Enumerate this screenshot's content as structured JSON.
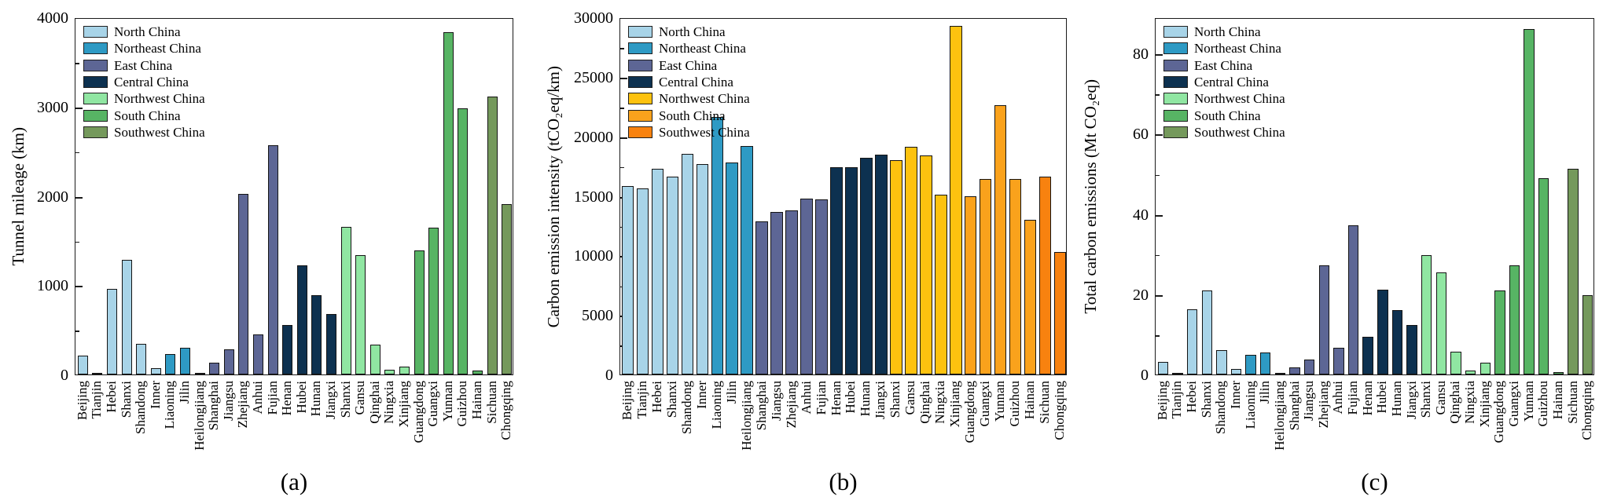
{
  "figure": {
    "background": "#ffffff",
    "frame_color": "#1a1a1a"
  },
  "regions": {
    "labels": [
      "North China",
      "Northeast China",
      "East China",
      "Central China",
      "Northwest China",
      "South China",
      "Southwest China"
    ],
    "sizes": [
      6,
      3,
      5,
      4,
      5,
      5,
      2
    ]
  },
  "chart_data": [
    {
      "type": "bar",
      "caption": "(a)",
      "ylabel": "Tunnel mileage (km)",
      "ylim": [
        0,
        4000
      ],
      "yticks": [
        0,
        1000,
        2000,
        3000,
        4000
      ],
      "ytick_minor_step": 500,
      "grid": false,
      "legend_position": "top-left",
      "legend_labels": [
        "North China",
        "Northeast China",
        "East China",
        "Central China",
        "Northwest China",
        "South China",
        "Southwest China"
      ],
      "region_colors": [
        "#A8D4E8",
        "#2E9AC4",
        "#5D6695",
        "#0D3150",
        "#90E6A2",
        "#57B464",
        "#75995C"
      ],
      "region_sizes": [
        6,
        3,
        5,
        4,
        5,
        5,
        2
      ],
      "categories": [
        "Beijing",
        "Tianjin",
        "Hebei",
        "Shanxi",
        "Shandong",
        "Inner",
        "Liaoning",
        "Jilin",
        "Heilongjiang",
        "Shanghai",
        "Jiangsu",
        "Zhejiang",
        "Anhui",
        "Fujian",
        "Henan",
        "Hubei",
        "Hunan",
        "Jiangxi",
        "Shanxi",
        "Gansu",
        "Qinghai",
        "Ningxia",
        "Xinjiang",
        "Guangdong",
        "Guangxi",
        "Yunnan",
        "Guizhou",
        "Hainan",
        "Sichuan",
        "Chongqing"
      ],
      "values": [
        210,
        20,
        960,
        1285,
        340,
        70,
        230,
        300,
        15,
        135,
        285,
        2020,
        450,
        2570,
        550,
        1225,
        890,
        680,
        1650,
        1335,
        330,
        55,
        90,
        1385,
        1645,
        3830,
        2980,
        45,
        3110,
        1905
      ]
    },
    {
      "type": "bar",
      "caption": "(b)",
      "ylabel": "Carbon emission intensity (tCO₂eq/km)",
      "ylim": [
        0,
        30000
      ],
      "yticks": [
        0,
        5000,
        10000,
        15000,
        20000,
        25000,
        30000
      ],
      "ytick_minor_step": 2500,
      "grid": false,
      "legend_position": "top-left",
      "legend_labels": [
        "North China",
        "Northeast China",
        "East China",
        "Central China",
        "Northwest China",
        "South China",
        "Southwest China"
      ],
      "region_colors": [
        "#A8D4E8",
        "#2E9AC4",
        "#5D6695",
        "#0D3150",
        "#FDC20F",
        "#FAA21C",
        "#F8820F"
      ],
      "region_sizes": [
        6,
        3,
        5,
        4,
        5,
        5,
        2
      ],
      "categories": [
        "Beijing",
        "Tianjin",
        "Hebei",
        "Shanxi",
        "Shandong",
        "Inner",
        "Liaoning",
        "Jilin",
        "Heilongjiang",
        "Shanghai",
        "Jiangsu",
        "Zhejiang",
        "Anhui",
        "Fujian",
        "Henan",
        "Hubei",
        "Hunan",
        "Jiangxi",
        "Shanxi",
        "Gansu",
        "Qinghai",
        "Ningxia",
        "Xinjiang",
        "Guangdong",
        "Guangxi",
        "Yunnan",
        "Guizhou",
        "Hainan",
        "Sichuan",
        "Chongqing"
      ],
      "values": [
        15800,
        15650,
        17300,
        16600,
        18500,
        17700,
        21600,
        17800,
        19200,
        12850,
        13650,
        13750,
        14800,
        14700,
        17400,
        17400,
        18200,
        18450,
        18000,
        19100,
        18400,
        15100,
        29250,
        15000,
        16450,
        22600,
        16400,
        13000,
        16600,
        10300
      ]
    },
    {
      "type": "bar",
      "caption": "(c)",
      "ylabel": "Total carbon emissions (Mt CO₂eq)",
      "ylim": [
        0,
        89
      ],
      "yticks": [
        0,
        20,
        40,
        60,
        80
      ],
      "ytick_minor_step": 10,
      "grid": false,
      "legend_position": "top-left",
      "legend_labels": [
        "North China",
        "Northeast China",
        "East China",
        "Central China",
        "Northwest China",
        "South China",
        "Southwest China"
      ],
      "region_colors": [
        "#A8D4E8",
        "#2E9AC4",
        "#5D6695",
        "#0D3150",
        "#90E6A2",
        "#57B464",
        "#75995C"
      ],
      "region_sizes": [
        6,
        3,
        5,
        4,
        5,
        5,
        2
      ],
      "categories": [
        "Beijing",
        "Tianjin",
        "Hebei",
        "Shanxi",
        "Shandong",
        "Inner",
        "Liaoning",
        "Jilin",
        "Heilongjiang",
        "Shanghai",
        "Jiangsu",
        "Zhejiang",
        "Anhui",
        "Fujian",
        "Henan",
        "Hubei",
        "Hunan",
        "Jiangxi",
        "Shanxi",
        "Gansu",
        "Qinghai",
        "Ningxia",
        "Xinjiang",
        "Guangdong",
        "Guangxi",
        "Yunnan",
        "Guizhou",
        "Hainan",
        "Sichuan",
        "Chongqing"
      ],
      "values": [
        3.2,
        0.2,
        16.3,
        21.0,
        6.1,
        1.4,
        4.9,
        5.5,
        0.4,
        1.7,
        3.7,
        27.2,
        6.6,
        37.2,
        9.3,
        21.2,
        16.1,
        12.4,
        29.7,
        25.5,
        5.6,
        0.9,
        2.9,
        21.0,
        27.1,
        86.0,
        49.0,
        0.6,
        51.3,
        19.7
      ]
    }
  ]
}
